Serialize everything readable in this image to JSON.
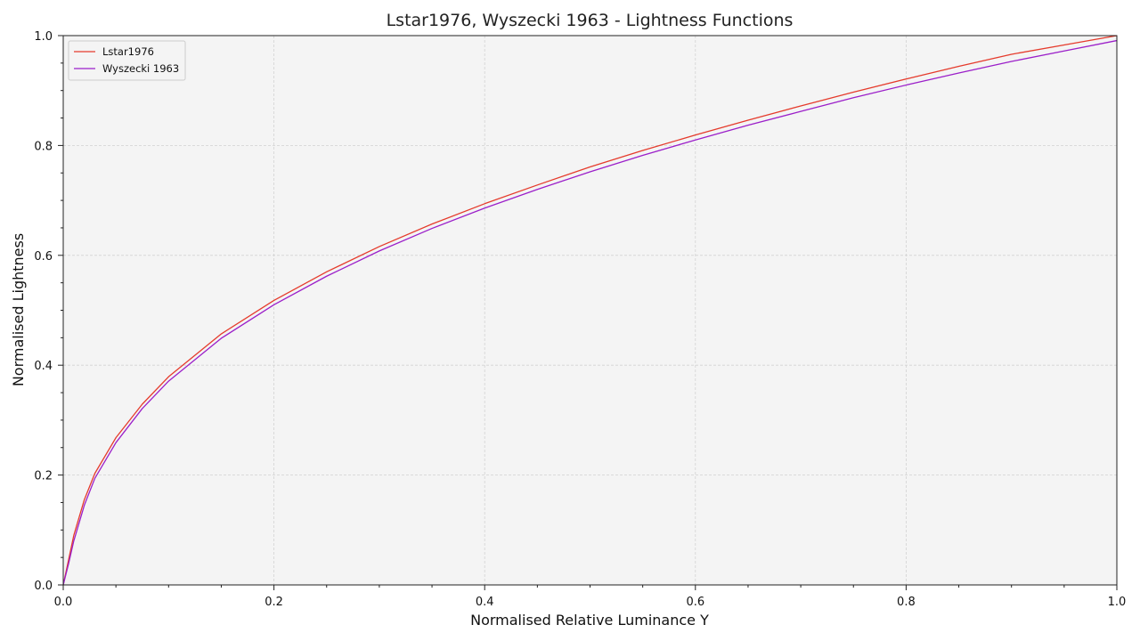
{
  "chart_data": {
    "type": "line",
    "title": "Lstar1976, Wyszecki 1963 - Lightness Functions",
    "xlabel": "Normalised Relative Luminance Y",
    "ylabel": "Normalised Lightness",
    "xlim": [
      0,
      1
    ],
    "ylim": [
      0,
      1
    ],
    "xticks": [
      "0.0",
      "0.2",
      "0.4",
      "0.6",
      "0.8",
      "1.0"
    ],
    "yticks": [
      "0.0",
      "0.2",
      "0.4",
      "0.6",
      "0.8",
      "1.0"
    ],
    "grid": true,
    "legend_position": "top-left",
    "background_color": "#f4f4f4",
    "x": [
      0.0,
      0.005,
      0.01,
      0.02,
      0.03,
      0.05,
      0.075,
      0.1,
      0.15,
      0.2,
      0.25,
      0.3,
      0.35,
      0.4,
      0.45,
      0.5,
      0.55,
      0.6,
      0.65,
      0.7,
      0.75,
      0.8,
      0.85,
      0.9,
      0.95,
      1.0
    ],
    "series": [
      {
        "name": "Lstar1976",
        "color": "#e53b2c",
        "values": [
          0.0,
          0.045,
          0.09,
          0.155,
          0.203,
          0.268,
          0.329,
          0.379,
          0.457,
          0.518,
          0.57,
          0.616,
          0.657,
          0.694,
          0.728,
          0.761,
          0.791,
          0.819,
          0.846,
          0.872,
          0.897,
          0.921,
          0.944,
          0.966,
          0.983,
          1.0
        ]
      },
      {
        "name": "Wyszecki 1963",
        "color": "#9b1fc9",
        "values": [
          0.0,
          0.038,
          0.08,
          0.145,
          0.194,
          0.259,
          0.321,
          0.371,
          0.449,
          0.51,
          0.562,
          0.608,
          0.649,
          0.686,
          0.72,
          0.752,
          0.782,
          0.81,
          0.837,
          0.862,
          0.887,
          0.91,
          0.932,
          0.953,
          0.972,
          0.991
        ]
      }
    ]
  }
}
